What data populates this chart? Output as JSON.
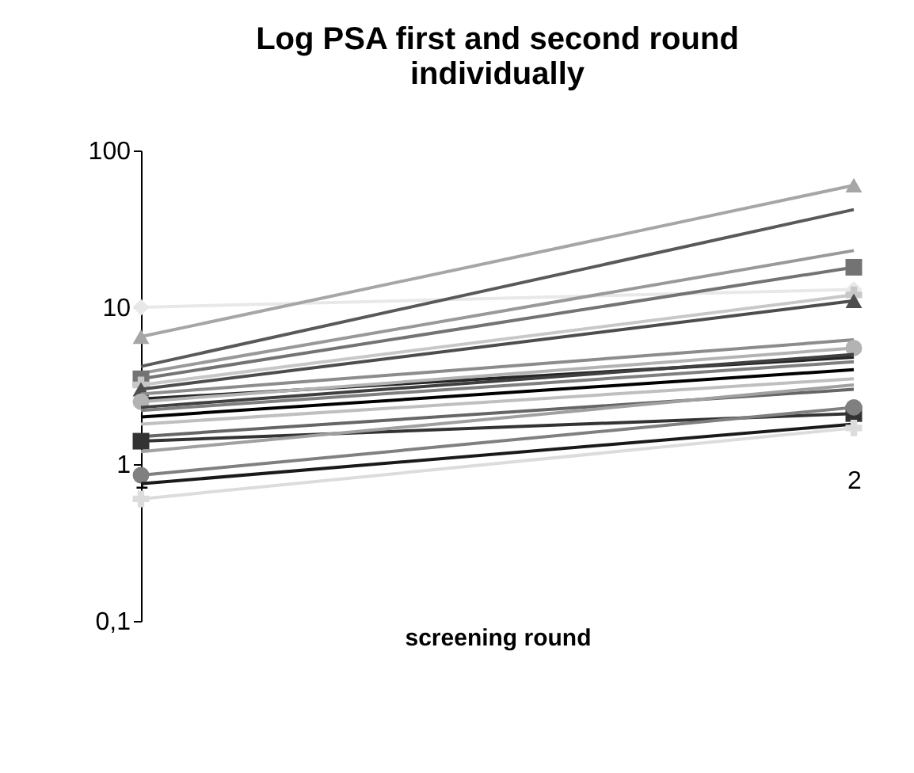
{
  "chart_data": {
    "type": "line",
    "title": "Log PSA first and second round individually",
    "xlabel": "screening round",
    "categories": [
      "1",
      "2"
    ],
    "log": "y",
    "ylim": [
      0.1,
      100
    ],
    "yticks": [
      {
        "value": 0.1,
        "label": "0,1"
      },
      1,
      10,
      100
    ],
    "series": [
      {
        "color": "#e8e8e8",
        "values": [
          10,
          13
        ],
        "marker": "diamond"
      },
      {
        "color": "#a6a6a6",
        "values": [
          6.5,
          60
        ],
        "marker": "triangle"
      },
      {
        "color": "#595959",
        "values": [
          4.2,
          42
        ],
        "marker": "none"
      },
      {
        "color": "#999999",
        "values": [
          3.8,
          23
        ],
        "marker": "none"
      },
      {
        "color": "#737373",
        "values": [
          3.5,
          18
        ],
        "marker": "square"
      },
      {
        "color": "#c8c8c8",
        "values": [
          3.2,
          12
        ],
        "marker": "cross"
      },
      {
        "color": "#4d4d4d",
        "values": [
          3.0,
          11
        ],
        "marker": "triangle"
      },
      {
        "color": "#8c8c8c",
        "values": [
          2.8,
          6.2
        ],
        "marker": "none"
      },
      {
        "color": "#262626",
        "values": [
          2.6,
          4.8
        ],
        "marker": "none"
      },
      {
        "color": "#b3b3b3",
        "values": [
          2.5,
          5.5
        ],
        "marker": "circle"
      },
      {
        "color": "#404040",
        "values": [
          2.3,
          5
        ],
        "marker": "none"
      },
      {
        "color": "#7f7f7f",
        "values": [
          2.2,
          4.5
        ],
        "marker": "none"
      },
      {
        "color": "#000000",
        "values": [
          2.0,
          4
        ],
        "marker": "none"
      },
      {
        "color": "#bfbfbf",
        "values": [
          1.8,
          3.5
        ],
        "marker": "none"
      },
      {
        "color": "#666666",
        "values": [
          1.5,
          3
        ],
        "marker": "none"
      },
      {
        "color": "#333333",
        "values": [
          1.4,
          2.1
        ],
        "marker": "square"
      },
      {
        "color": "#a0a0a0",
        "values": [
          1.2,
          3.2
        ],
        "marker": "none"
      },
      {
        "color": "#808080",
        "values": [
          0.85,
          2.3
        ],
        "marker": "circle"
      },
      {
        "color": "#1a1a1a",
        "values": [
          0.75,
          1.8
        ],
        "marker": "none"
      },
      {
        "color": "#dcdcdc",
        "values": [
          0.6,
          1.7
        ],
        "marker": "cross"
      }
    ]
  }
}
